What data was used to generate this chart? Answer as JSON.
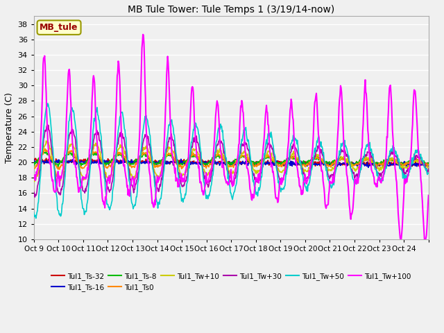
{
  "title": "MB Tule Tower: Tule Temps 1 (3/19/14-now)",
  "ylabel": "Temperature (C)",
  "ylim": [
    10,
    39
  ],
  "yticks": [
    10,
    12,
    14,
    16,
    18,
    20,
    22,
    24,
    26,
    28,
    30,
    32,
    34,
    36,
    38
  ],
  "x_labels": [
    "Oct 9",
    "Oct 10",
    "Oct 11",
    "Oct 12",
    "Oct 13",
    "Oct 14",
    "Oct 15",
    "Oct 16",
    "Oct 17",
    "Oct 18",
    "Oct 19",
    "Oct 20",
    "Oct 21",
    "Oct 22",
    "Oct 23",
    "Oct 24",
    ""
  ],
  "legend_label": "MB_tule",
  "series_order": [
    "Tul1_Ts-32",
    "Tul1_Ts-16",
    "Tul1_Ts-8",
    "Tul1_Ts0",
    "Tul1_Tw+10",
    "Tul1_Tw+30",
    "Tul1_Tw+50",
    "Tul1_Tw+100"
  ],
  "series": {
    "Tul1_Ts-32": {
      "color": "#cc0000",
      "lw": 1.2
    },
    "Tul1_Ts-16": {
      "color": "#0000cc",
      "lw": 1.2
    },
    "Tul1_Ts-8": {
      "color": "#00bb00",
      "lw": 1.2
    },
    "Tul1_Ts0": {
      "color": "#ff8800",
      "lw": 1.2
    },
    "Tul1_Tw+10": {
      "color": "#cccc00",
      "lw": 1.2
    },
    "Tul1_Tw+30": {
      "color": "#aa00aa",
      "lw": 1.2
    },
    "Tul1_Tw+50": {
      "color": "#00cccc",
      "lw": 1.2
    },
    "Tul1_Tw+100": {
      "color": "#ff00ff",
      "lw": 1.5
    }
  },
  "legend_entries": [
    {
      "label": "Tul1_Ts-32",
      "color": "#cc0000"
    },
    {
      "label": "Tul1_Ts-16",
      "color": "#0000cc"
    },
    {
      "label": "Tul1_Ts-8",
      "color": "#00bb00"
    },
    {
      "label": "Tul1_Ts0",
      "color": "#ff8800"
    },
    {
      "label": "Tul1_Tw+10",
      "color": "#cccc00"
    },
    {
      "label": "Tul1_Tw+30",
      "color": "#aa00aa"
    },
    {
      "label": "Tul1_Tw+50",
      "color": "#00cccc"
    },
    {
      "label": "Tul1_Tw+100",
      "color": "#ff00ff"
    }
  ],
  "bg_color": "#f0f0f0",
  "grid_color": "#ffffff",
  "n_days": 16,
  "pts_per_day": 48
}
